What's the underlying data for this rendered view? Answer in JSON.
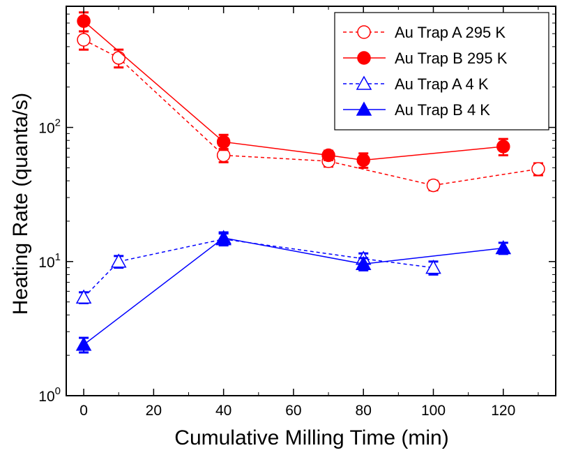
{
  "chart_data": {
    "type": "scatter",
    "xlabel": "Cumulative Milling Time (min)",
    "ylabel": "Heating Rate (quanta/s)",
    "xlim": [
      -5,
      135
    ],
    "ylim": [
      1,
      800
    ],
    "y_scale": "log",
    "x_ticks": [
      0,
      20,
      40,
      60,
      80,
      100,
      120
    ],
    "x_tick_labels": [
      "0",
      "20",
      "40",
      "60",
      "80",
      "100",
      "120"
    ],
    "y_ticks": [
      1,
      10,
      100
    ],
    "y_tick_labels": [
      {
        "base": "10",
        "exp": "0"
      },
      {
        "base": "10",
        "exp": "1"
      },
      {
        "base": "10",
        "exp": "2"
      }
    ],
    "legend_position": "top-right",
    "grid": false,
    "series": [
      {
        "name": "Au Trap A 295 K",
        "color": "#ff0000",
        "marker": "circle-open",
        "line": "dashed",
        "x": [
          0,
          10,
          40,
          70,
          100,
          130
        ],
        "y": [
          450,
          330,
          62,
          56,
          37,
          49
        ],
        "err": [
          70,
          50,
          7,
          5,
          3,
          5
        ]
      },
      {
        "name": "Au Trap B 295 K",
        "color": "#ff0000",
        "marker": "circle-filled",
        "line": "solid",
        "x": [
          0,
          40,
          70,
          80,
          120
        ],
        "y": [
          620,
          78,
          62,
          57,
          72
        ],
        "err": [
          100,
          10,
          5,
          7,
          10
        ]
      },
      {
        "name": "Au Trap A 4 K",
        "color": "#0000ff",
        "marker": "triangle-open",
        "line": "dashed",
        "x": [
          0,
          10,
          40,
          80,
          100
        ],
        "y": [
          5.4,
          10,
          14.7,
          10.5,
          9
        ],
        "err": [
          0.5,
          1,
          1.5,
          1,
          1
        ]
      },
      {
        "name": "Au Trap B 4 K",
        "color": "#0000ff",
        "marker": "triangle-filled",
        "line": "solid",
        "x": [
          0,
          40,
          80,
          120
        ],
        "y": [
          2.4,
          15,
          9.6,
          12.6
        ],
        "err": [
          0.3,
          1.5,
          1,
          1.2
        ]
      }
    ]
  }
}
